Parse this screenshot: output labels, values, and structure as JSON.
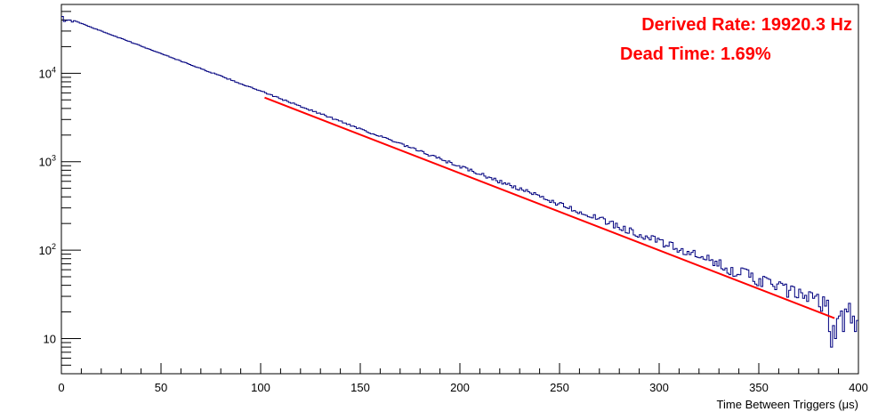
{
  "chart_data": {
    "type": "line",
    "title": "",
    "xlabel": "Time Between Triggers (μs)",
    "ylabel": "",
    "xlim": [
      0,
      400
    ],
    "ylim": [
      4,
      60000
    ],
    "yscale": "log",
    "grid": false,
    "x_ticks": [
      0,
      50,
      100,
      150,
      200,
      250,
      300,
      350,
      400
    ],
    "y_ticks": [
      {
        "value": 10,
        "base": "10",
        "exp": ""
      },
      {
        "value": 100,
        "base": "10",
        "exp": "2"
      },
      {
        "value": 1000,
        "base": "10",
        "exp": "3"
      },
      {
        "value": 10000,
        "base": "10",
        "exp": "4"
      }
    ],
    "annotations": [
      "Derived Rate: 19920.3 Hz",
      "Dead Time: 1.69%"
    ],
    "series": [
      {
        "kind": "histogram",
        "color": "#00007f",
        "bin_width": 1,
        "x_range": [
          0,
          400
        ],
        "start_value": 40000,
        "slope_per_us": 0.0196,
        "peak_bins": [
          {
            "x": 1,
            "value": 38500
          },
          {
            "x": 2,
            "value": 39500
          },
          {
            "x": 3,
            "value": 40000
          },
          {
            "x": 4,
            "value": 39800
          },
          {
            "x": 5,
            "value": 38000
          }
        ],
        "fluctuating_tail": [
          {
            "x": 385,
            "value": 12
          },
          {
            "x": 386,
            "value": 8
          },
          {
            "x": 387,
            "value": 14
          },
          {
            "x": 388,
            "value": 10
          },
          {
            "x": 390,
            "value": 18
          },
          {
            "x": 392,
            "value": 12
          },
          {
            "x": 394,
            "value": 20
          },
          {
            "x": 395,
            "value": 25
          },
          {
            "x": 396,
            "value": 15
          },
          {
            "x": 398,
            "value": 12
          },
          {
            "x": 399,
            "value": 16
          }
        ]
      },
      {
        "kind": "fit",
        "color": "#ff0000",
        "x": [
          102,
          388
        ],
        "y": [
          5300,
          17
        ]
      }
    ],
    "colors": {
      "histogram": "#00007f",
      "fit": "#ff0000",
      "annotation": "#ff0000",
      "axis": "#000000"
    }
  }
}
